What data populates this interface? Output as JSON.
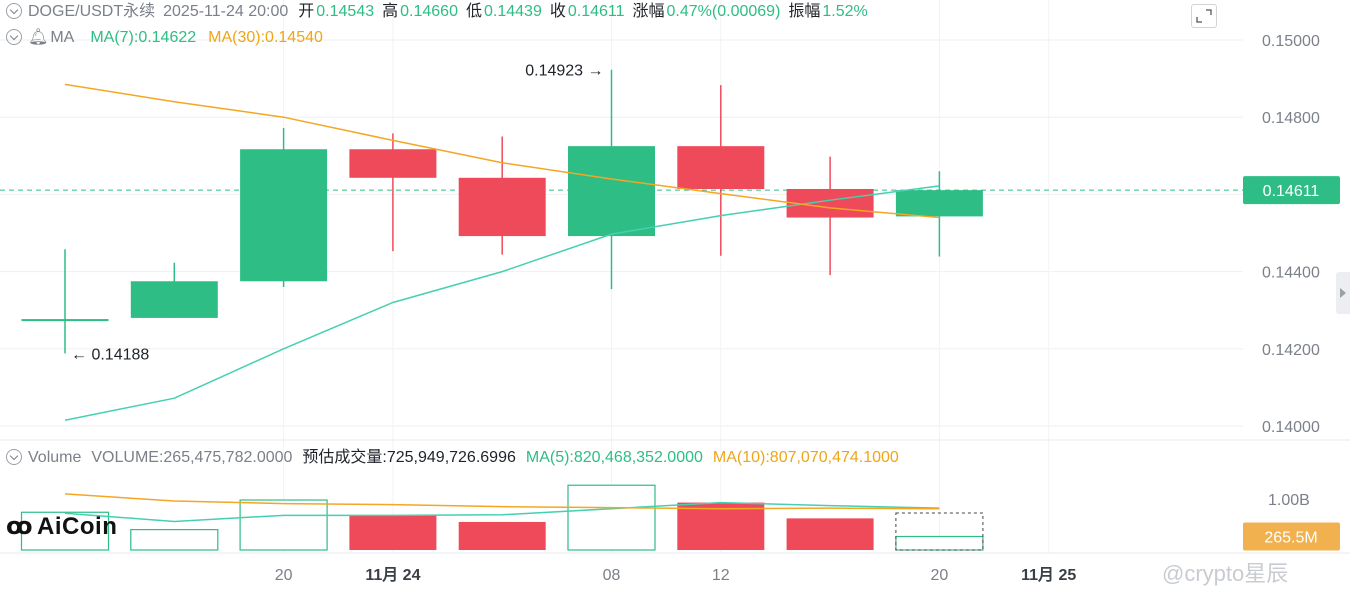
{
  "header": {
    "symbol": "DOGE/USDT永续",
    "datetime": "2025-11-24 20:00",
    "open_label": "开",
    "open": "0.14543",
    "high_label": "高",
    "high": "0.14660",
    "low_label": "低",
    "low": "0.14439",
    "close_label": "收",
    "close": "0.14611",
    "change_label": "涨幅",
    "change": "0.47%(0.00069)",
    "amp_label": "振幅",
    "amp": "1.52%"
  },
  "ma_header": {
    "label": "MA",
    "ma7": "MA(7):0.14622",
    "ma30": "MA(30):0.14540"
  },
  "vol_header": {
    "label": "Volume",
    "volume": "VOLUME:265,475,782.0000",
    "estimate": "预估成交量:725,949,726.6996",
    "ma5": "MA(5):820,468,352.0000",
    "ma10": "MA(10):807,070,474.1000"
  },
  "logo_text": "AiCoin",
  "watermark": "@crypto星辰",
  "colors": {
    "up": "#2ebd85",
    "down": "#ef4a5a",
    "ma7": "#45d0b0",
    "ma30": "#f5a623",
    "price_tag": "#2ebd85",
    "vol_tag": "#f0b14e"
  },
  "chart_data": {
    "type": "candlestick",
    "price_axis": {
      "min": 0.14,
      "max": 0.15,
      "ticks": [
        "0.15000",
        "0.14800",
        "0.14600",
        "0.14400",
        "0.14200",
        "0.14000"
      ]
    },
    "x_ticks": [
      {
        "index": 2,
        "label": "20",
        "bold": false
      },
      {
        "index": 3,
        "label": "11月 24",
        "bold": true
      },
      {
        "index": 5,
        "label": "08",
        "bold": false
      },
      {
        "index": 6,
        "label": "12",
        "bold": false
      },
      {
        "index": 8,
        "label": "20",
        "bold": false
      },
      {
        "index": 9,
        "label": "11月 25",
        "bold": true
      }
    ],
    "candles": [
      {
        "o": 0.14277,
        "h": 0.14458,
        "l": 0.14188,
        "c": 0.14277,
        "dir": "up"
      },
      {
        "o": 0.1428,
        "h": 0.14423,
        "l": 0.1428,
        "c": 0.14375,
        "dir": "up"
      },
      {
        "o": 0.14375,
        "h": 0.14772,
        "l": 0.1436,
        "c": 0.14717,
        "dir": "up"
      },
      {
        "o": 0.14717,
        "h": 0.14758,
        "l": 0.14453,
        "c": 0.14643,
        "dir": "down"
      },
      {
        "o": 0.14643,
        "h": 0.1475,
        "l": 0.14444,
        "c": 0.14492,
        "dir": "down"
      },
      {
        "o": 0.14492,
        "h": 0.14923,
        "l": 0.14355,
        "c": 0.14725,
        "dir": "up"
      },
      {
        "o": 0.14725,
        "h": 0.14883,
        "l": 0.14441,
        "c": 0.14614,
        "dir": "down"
      },
      {
        "o": 0.14614,
        "h": 0.14698,
        "l": 0.14391,
        "c": 0.1454,
        "dir": "down"
      },
      {
        "o": 0.14543,
        "h": 0.1466,
        "l": 0.14439,
        "c": 0.14611,
        "dir": "up"
      }
    ],
    "ma7": [
      0.14015,
      0.14072,
      0.142,
      0.1432,
      0.144,
      0.14497,
      0.14545,
      0.14585,
      0.14622
    ],
    "ma30": [
      0.14885,
      0.1484,
      0.148,
      0.1474,
      0.14682,
      0.1464,
      0.14602,
      0.14565,
      0.1454
    ],
    "high_marker": {
      "index": 5,
      "label": "0.14923"
    },
    "low_marker": {
      "index": 0,
      "label": "0.14188"
    },
    "last_price": "0.14611",
    "volume_axis": {
      "max_label": "1.00B",
      "current_label": "265.5M"
    },
    "volume": [
      {
        "v": 0.74,
        "dir": "up"
      },
      {
        "v": 0.4,
        "dir": "up"
      },
      {
        "v": 0.98,
        "dir": "up"
      },
      {
        "v": 0.68,
        "dir": "down"
      },
      {
        "v": 0.55,
        "dir": "down"
      },
      {
        "v": 1.27,
        "dir": "up"
      },
      {
        "v": 0.93,
        "dir": "down"
      },
      {
        "v": 0.62,
        "dir": "down"
      },
      {
        "v": 0.265,
        "dir": "up",
        "estimate": 0.726
      }
    ],
    "vol_ma5": [
      0.72,
      0.56,
      0.68,
      0.68,
      0.69,
      0.81,
      0.93,
      0.87,
      0.82
    ],
    "vol_ma10": [
      1.1,
      0.96,
      0.91,
      0.89,
      0.85,
      0.83,
      0.81,
      0.82,
      0.81
    ]
  }
}
